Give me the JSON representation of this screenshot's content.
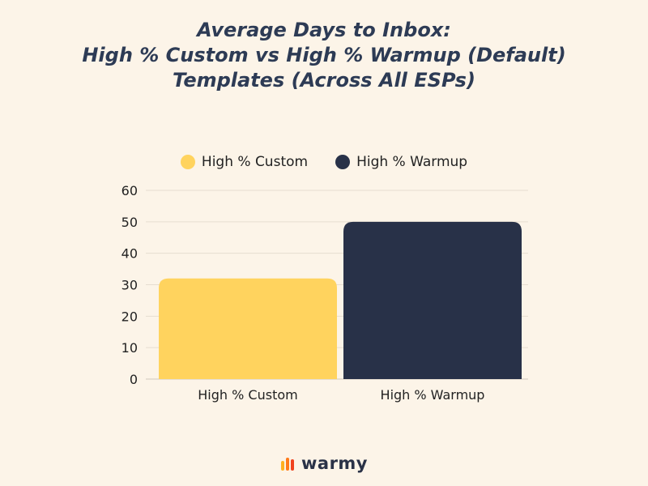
{
  "chart_data": {
    "type": "bar",
    "title_lines": [
      "Average Days to Inbox:",
      "High % Custom vs High % Warmup (Default)",
      "Templates (Across All ESPs)"
    ],
    "categories": [
      "High % Custom",
      "High % Warmup"
    ],
    "values": [
      32,
      50
    ],
    "series_colors": [
      "#ffd35e",
      "#283148"
    ],
    "legend": [
      {
        "label": "High % Custom",
        "color": "#ffd35e"
      },
      {
        "label": "High % Warmup",
        "color": "#283148"
      }
    ],
    "legend_position": "top-center",
    "ylim": [
      0,
      60
    ],
    "yticks": [
      0,
      10,
      20,
      30,
      40,
      50,
      60
    ],
    "grid": true,
    "xlabel": "",
    "ylabel": ""
  },
  "brand": {
    "name": "warmy",
    "logo": "warmy-flame-bars-icon",
    "logo_colors": [
      "#ff7a1a",
      "#ffb020",
      "#f0421e"
    ]
  }
}
